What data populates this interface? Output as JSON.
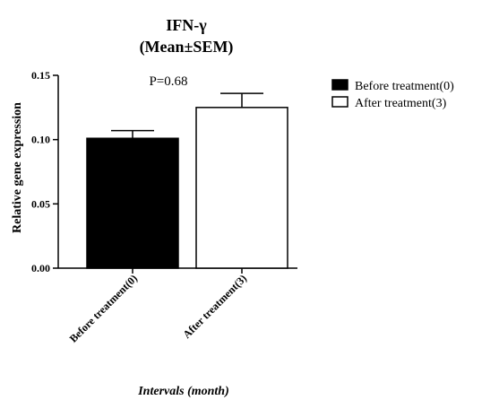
{
  "chart_data": {
    "type": "bar",
    "title": "IFN-γ",
    "subtitle": "(Mean±SEM)",
    "annotation": "P=0.68",
    "categories": [
      "Before treatment(0)",
      "After treatment(3)"
    ],
    "values": [
      0.101,
      0.125
    ],
    "errors": [
      0.006,
      0.011
    ],
    "bar_colors": [
      "#000000",
      "#ffffff"
    ],
    "ylabel": "Relative gene expression",
    "xlabel": "Intervals (month)",
    "ylim": [
      0,
      0.15
    ],
    "yticks": [
      0.0,
      0.05,
      0.1,
      0.15
    ],
    "ytick_labels": [
      "0.00",
      "0.05",
      "0.10",
      "0.15"
    ],
    "grid": false,
    "legend_position": "right",
    "legend": [
      {
        "label": "Before treatment(0)",
        "color": "#000000"
      },
      {
        "label": "After treatment(3)",
        "color": "#ffffff"
      }
    ]
  }
}
